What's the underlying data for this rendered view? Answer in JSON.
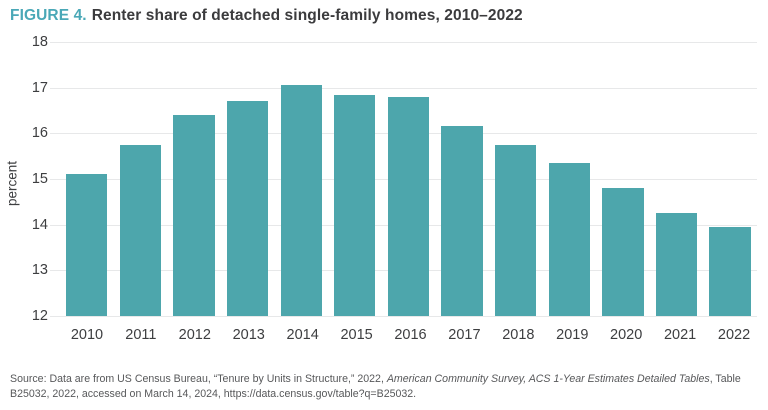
{
  "figure": {
    "label": "FIGURE 4.",
    "title": "Renter share of detached single-family homes, 2010–2022"
  },
  "chart_data": {
    "type": "bar",
    "title": "Renter share of detached single-family homes, 2010–2022",
    "categories": [
      "2010",
      "2011",
      "2012",
      "2013",
      "2014",
      "2015",
      "2016",
      "2017",
      "2018",
      "2019",
      "2020",
      "2021",
      "2022"
    ],
    "values": [
      15.1,
      15.75,
      16.4,
      16.7,
      17.05,
      16.85,
      16.8,
      16.15,
      15.75,
      15.35,
      14.8,
      14.25,
      13.95
    ],
    "xlabel": "",
    "ylabel": "percent",
    "ylim": [
      12,
      18
    ],
    "yticks": [
      18,
      17,
      16,
      15,
      14,
      13,
      12
    ],
    "grid": true,
    "legend": "none",
    "bar_color": "#4da6ac"
  },
  "colors": {
    "figure_label": "#4aa8b7",
    "title_text": "#3b3b3d",
    "axis_text": "#3d3e40",
    "gridline": "#e7e8e9",
    "bar": "#4da6ac",
    "source_text": "#57585a"
  },
  "source": {
    "prefix": "Source: Data are from US Census Bureau, “Tenure by Units in Structure,” 2022, ",
    "italic": "American Community Survey, ACS 1-Year Estimates Detailed Tables",
    "suffix": ", Table B25032, 2022, accessed on March 14, 2024, https://data.census.gov/table?q=B25032."
  }
}
